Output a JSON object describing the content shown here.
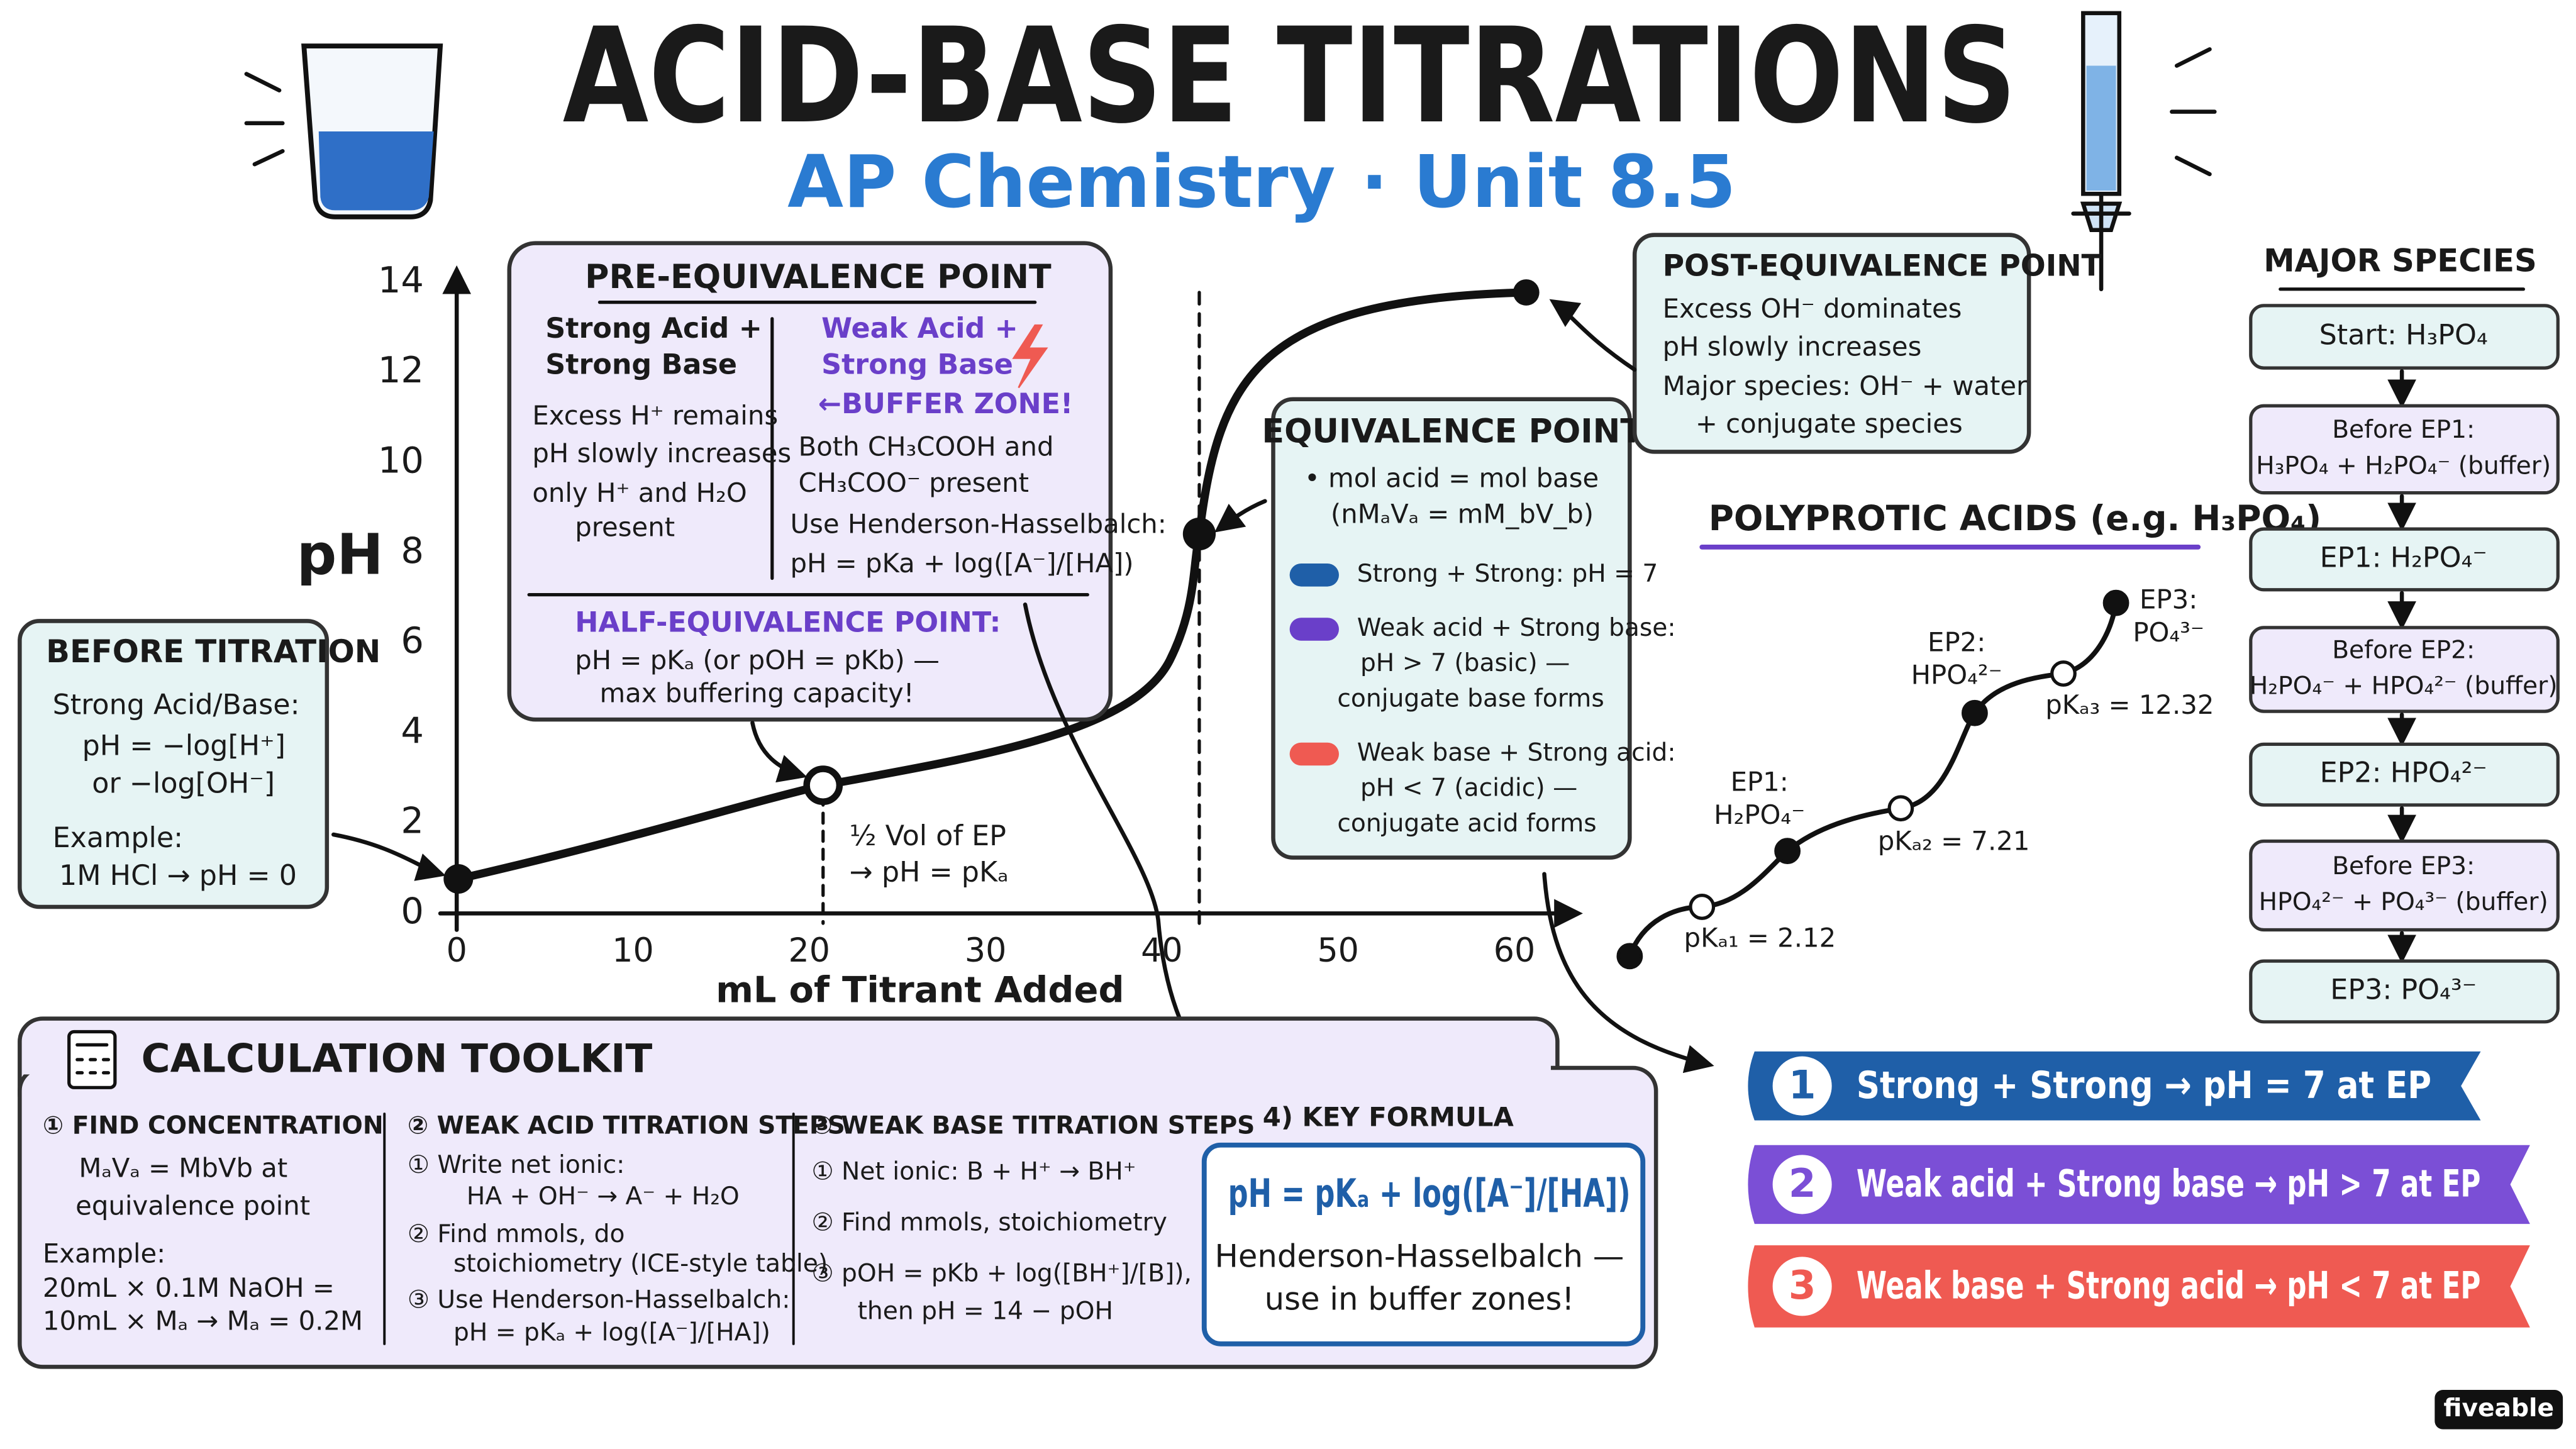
{
  "header": {
    "title": "ACID-BASE TITRATIONS",
    "subtitle": "AP Chemistry · Unit 8.5"
  },
  "graph": {
    "y_label": "pH",
    "x_label": "mL of Titrant Added",
    "y_ticks": [
      "0",
      "2",
      "4",
      "6",
      "8",
      "10",
      "12",
      "14"
    ],
    "x_ticks": [
      "0",
      "10",
      "20",
      "30",
      "40",
      "50",
      "60"
    ],
    "half_note": [
      "½ Vol of EP",
      "→ pH = pKₐ"
    ]
  },
  "before": {
    "title": "BEFORE TITRATION",
    "lines": [
      "Strong Acid/Base:",
      "pH = −log[H⁺]",
      "or  −log[OH⁻]",
      "Example:",
      "1M HCl → pH = 0"
    ]
  },
  "pre": {
    "title": "PRE-EQUIVALENCE POINT",
    "left_head": [
      "Strong Acid +",
      "Strong Base"
    ],
    "left_lines": [
      "Excess H⁺ remains",
      "pH slowly increases",
      "only H⁺ and H₂O",
      "present"
    ],
    "right_head": [
      "Weak Acid +",
      "Strong Base"
    ],
    "buffer": "←BUFFER ZONE!",
    "right_lines": [
      "Both CH₃COOH and",
      "CH₃COO⁻ present",
      "Use Henderson-Hasselbalch:",
      "pH = pKa + log([A⁻]/[HA])"
    ],
    "half_title": "HALF-EQUIVALENCE POINT:",
    "half_lines": [
      "pH = pKₐ (or pOH = pKb) —",
      "max buffering capacity!"
    ]
  },
  "equivalence": {
    "title": "EQUIVALENCE POINT",
    "lines": [
      "• mol acid = mol base",
      "(nMₐVₐ = mM_bV_b)"
    ],
    "legend": [
      [
        "Strong + Strong: pH = 7"
      ],
      [
        "Weak acid + Strong base:",
        "pH > 7 (basic) —",
        "conjugate base forms"
      ],
      [
        "Weak base + Strong acid:",
        "pH < 7 (acidic) —",
        "conjugate acid forms"
      ]
    ]
  },
  "post": {
    "title": "POST-EQUIVALENCE POINT",
    "lines": [
      "Excess OH⁻ dominates",
      "pH slowly increases",
      "Major species: OH⁻ + water",
      "+ conjugate species"
    ]
  },
  "polyprotic": {
    "title": "POLYPROTIC ACIDS (e.g. H₃PO₄)",
    "points": [
      [
        "EP1:",
        "H₂PO₄⁻"
      ],
      [
        "EP2:",
        "HPO₄²⁻"
      ],
      [
        "EP3:",
        "PO₄³⁻"
      ]
    ],
    "pkas": [
      "pKₐ₁ = 2.12",
      "pKₐ₂ = 7.21",
      "pKₐ₃ = 12.32"
    ]
  },
  "species": {
    "title": "MAJOR SPECIES",
    "steps": [
      [
        "Start: H₃PO₄"
      ],
      [
        "Before EP1:",
        "H₃PO₄ + H₂PO₄⁻ (buffer)"
      ],
      [
        "EP1: H₂PO₄⁻"
      ],
      [
        "Before EP2:",
        "H₂PO₄⁻ + HPO₄²⁻ (buffer)"
      ],
      [
        "EP2: HPO₄²⁻"
      ],
      [
        "Before EP3:",
        "HPO₄²⁻ + PO₄³⁻ (buffer)"
      ],
      [
        "EP3: PO₄³⁻"
      ]
    ]
  },
  "toolkit": {
    "title": "CALCULATION TOOLKIT",
    "columns": [
      {
        "head": "① FIND CONCENTRATION",
        "lines": [
          "MₐVₐ = MbVb at",
          "equivalence point",
          "Example:",
          "20mL × 0.1M NaOH =",
          "10mL × Mₐ → Mₐ = 0.2M"
        ]
      },
      {
        "head": "② WEAK ACID TITRATION STEPS",
        "lines": [
          "① Write net ionic:",
          "HA + OH⁻ → A⁻ + H₂O",
          "② Find mmols, do",
          "stoichiometry (ICE-style table)",
          "③ Use Henderson-Hasselbalch:",
          "pH = pKₐ + log([A⁻]/[HA])"
        ]
      },
      {
        "head": "③ WEAK BASE TITRATION STEPS",
        "lines": [
          "① Net ionic: B + H⁺ → BH⁺",
          "② Find mmols, stoichiometry",
          "③ pOH = pKb + log([BH⁺]/[B]),",
          "then pH = 14 − pOH"
        ]
      }
    ]
  },
  "key_formula": {
    "title": "4) KEY FORMULA",
    "formula": "pH = pKₐ + log([A⁻]/[HA])",
    "lines": [
      "Henderson-Hasselbalch —",
      "use in buffer zones!"
    ]
  },
  "banners": [
    {
      "num": "1",
      "text": "Strong + Strong → pH = 7 at EP"
    },
    {
      "num": "2",
      "text": "Weak acid + Strong base → pH > 7 at EP"
    },
    {
      "num": "3",
      "text": "Weak base + Strong acid → pH < 7 at EP"
    }
  ],
  "brand": "fiveable"
}
